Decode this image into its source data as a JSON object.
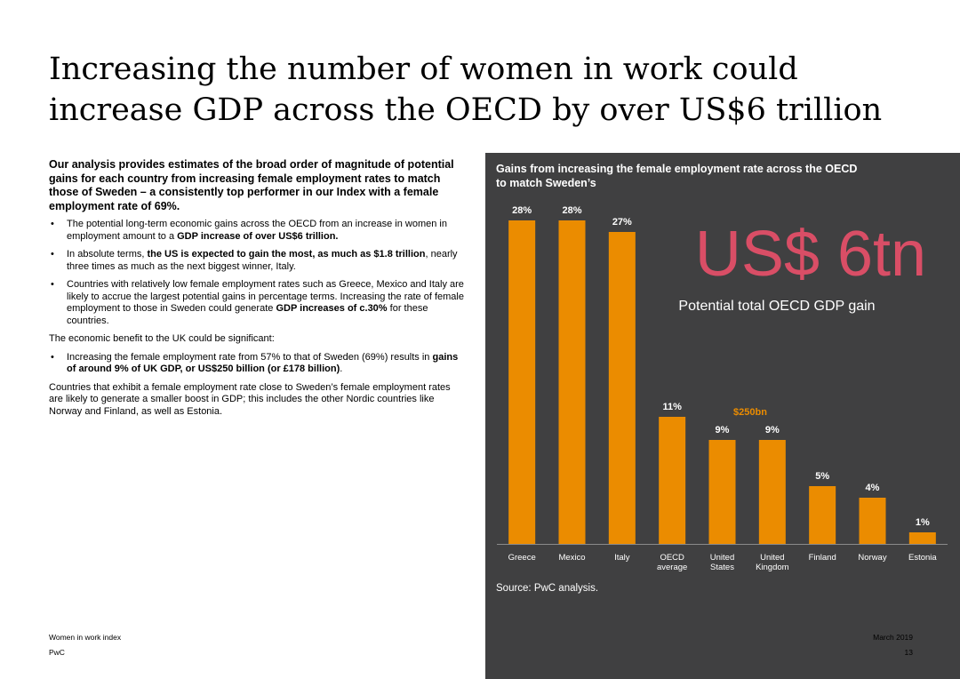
{
  "slide": {
    "title": "Increasing the number of women in work could increase GDP across the OECD by over US$6 trillion"
  },
  "left": {
    "lead": "Our analysis provides estimates of the broad order of magnitude of potential gains for each country from increasing female employment rates to match those of Sweden – a consistently top performer in our Index with a female employment rate of 69%.",
    "bullets1": [
      {
        "pre": "The potential long-term economic gains across the OECD from an increase in women in employment amount to a ",
        "bold": "GDP increase of over US$6 trillion.",
        "post": ""
      },
      {
        "pre": "In absolute terms, ",
        "bold": "the US is expected to gain the most, as much as $1.8 trillion",
        "post": ", nearly three times as much as the next biggest winner, Italy."
      },
      {
        "pre": "Countries with relatively low female employment rates such as Greece, Mexico and Italy are likely to accrue the largest potential gains in percentage terms. Increasing the rate of female employment to those in Sweden could generate ",
        "bold": "GDP increases of c.30%",
        "post": " for these countries."
      }
    ],
    "uk_intro": "The economic benefit to the UK could be significant:",
    "bullets2": [
      {
        "pre": "Increasing the female employment rate from 57% to that of Sweden (69%) results in ",
        "bold": "gains of around 9% of UK GDP, or US$250 billion (or £178 billion)",
        "post": "."
      }
    ],
    "closing": "Countries that exhibit a female employment rate close to Sweden’s female employment rates are likely to generate a smaller boost in GDP; this includes the other Nordic countries like Norway and Finland, as well as Estonia."
  },
  "panel": {
    "title": "Gains from increasing the female employment rate across the OECD to match Sweden’s",
    "big_number": "US$ 6tn",
    "big_caption": "Potential total OECD GDP gain",
    "annotation": "$250bn",
    "source": "Source: PwC analysis."
  },
  "chart_data": {
    "type": "bar",
    "categories": [
      [
        "Greece"
      ],
      [
        "Mexico"
      ],
      [
        "Italy"
      ],
      [
        "OECD",
        "average"
      ],
      [
        "United",
        "States"
      ],
      [
        "United",
        "Kingdom"
      ],
      [
        "Finland"
      ],
      [
        "Norway"
      ],
      [
        "Estonia"
      ]
    ],
    "values": [
      28,
      28,
      27,
      11,
      9,
      9,
      5,
      4,
      1
    ],
    "labels": [
      "28%",
      "28%",
      "27%",
      "11%",
      "9%",
      "9%",
      "5%",
      "4%",
      "1%"
    ],
    "bar_color": "#eb8c00",
    "ylim": [
      0,
      28
    ]
  },
  "footer": {
    "left_top": "Women in work index",
    "left_bottom": "PwC",
    "right_top": "March 2019",
    "right_bottom": "13"
  }
}
